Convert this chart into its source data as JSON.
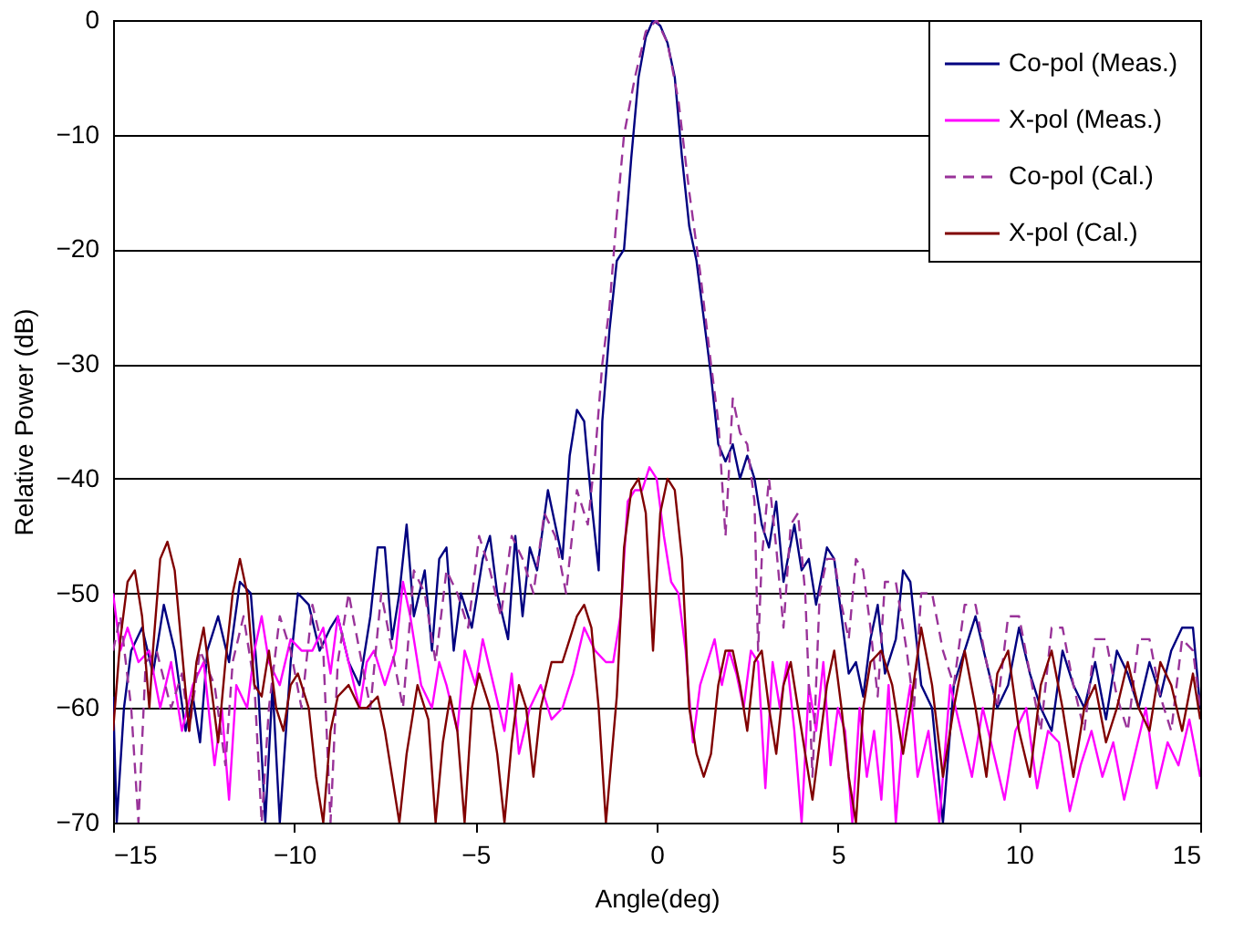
{
  "chart_data": {
    "type": "line",
    "xlabel": "Angle(deg)",
    "ylabel": "Relative Power (dB)",
    "xlim": [
      -15,
      15
    ],
    "xticks": [
      -15,
      -10,
      -5,
      0,
      5,
      10,
      15
    ],
    "ylim": [
      -70,
      0
    ],
    "yticks": [
      -70,
      -60,
      -50,
      -40,
      -30,
      -20,
      -10,
      0
    ],
    "grid": "y",
    "legend": "top right",
    "series": [
      {
        "name": "Co-pol  (Meas.)",
        "color": "#000080",
        "line_style": "solid",
        "x": [
          -15,
          -14.9,
          -14.7,
          -14.5,
          -14.2,
          -13.9,
          -13.6,
          -13.3,
          -13.0,
          -12.8,
          -12.6,
          -12.4,
          -12.1,
          -11.8,
          -11.5,
          -11.2,
          -11.0,
          -10.8,
          -10.6,
          -10.4,
          -10.1,
          -9.9,
          -9.6,
          -9.3,
          -9.0,
          -8.8,
          -8.5,
          -8.2,
          -7.9,
          -7.7,
          -7.5,
          -7.3,
          -7.1,
          -6.9,
          -6.7,
          -6.4,
          -6.2,
          -6.0,
          -5.8,
          -5.6,
          -5.4,
          -5.1,
          -4.8,
          -4.6,
          -4.4,
          -4.1,
          -3.9,
          -3.7,
          -3.5,
          -3.3,
          -3.0,
          -2.8,
          -2.6,
          -2.4,
          -2.2,
          -2.0,
          -1.8,
          -1.6,
          -1.5,
          -1.3,
          -1.1,
          -0.9,
          -0.7,
          -0.5,
          -0.3,
          -0.1,
          0.1,
          0.3,
          0.5,
          0.7,
          0.9,
          1.1,
          1.3,
          1.5,
          1.7,
          1.9,
          2.1,
          2.3,
          2.5,
          2.7,
          2.9,
          3.1,
          3.3,
          3.5,
          3.8,
          4.0,
          4.2,
          4.4,
          4.7,
          4.9,
          5.1,
          5.3,
          5.5,
          5.7,
          5.9,
          6.1,
          6.3,
          6.6,
          6.8,
          7.0,
          7.3,
          7.6,
          7.9,
          8.2,
          8.5,
          8.8,
          9.1,
          9.4,
          9.7,
          10.0,
          10.3,
          10.6,
          10.9,
          11.2,
          11.5,
          11.8,
          12.1,
          12.4,
          12.7,
          13.0,
          13.3,
          13.6,
          13.9,
          14.2,
          14.5,
          14.8,
          15
        ],
        "values": [
          -59,
          -70,
          -60,
          -55,
          -53,
          -57,
          -51,
          -55,
          -62,
          -59,
          -63,
          -55,
          -52,
          -56,
          -49,
          -50,
          -58,
          -70,
          -58,
          -70,
          -56,
          -50,
          -51,
          -55,
          -53,
          -52,
          -56,
          -58,
          -52,
          -46,
          -46,
          -54,
          -50,
          -44,
          -52,
          -48,
          -55,
          -47,
          -46,
          -55,
          -50,
          -53,
          -47,
          -45,
          -50,
          -54,
          -45,
          -52,
          -46,
          -48,
          -41,
          -44,
          -47,
          -38,
          -34,
          -35,
          -42,
          -48,
          -35,
          -27,
          -21,
          -20,
          -12,
          -5,
          -1.5,
          0,
          -0.5,
          -2,
          -5,
          -12,
          -18,
          -21,
          -26,
          -31,
          -37,
          -38.5,
          -37,
          -40,
          -38,
          -40,
          -44,
          -46,
          -42,
          -49,
          -44,
          -48,
          -47,
          -51,
          -46,
          -47,
          -52,
          -57,
          -56,
          -59,
          -54,
          -51,
          -57,
          -54,
          -48,
          -49,
          -58,
          -60,
          -70,
          -58,
          -55,
          -52,
          -56,
          -60,
          -58,
          -53,
          -57,
          -60,
          -62,
          -55,
          -58,
          -60,
          -56,
          -61,
          -55,
          -57,
          -60,
          -56,
          -59,
          -55,
          -53,
          -53,
          -60
        ]
      },
      {
        "name": "X-pol (Meas.)",
        "color": "#ff00ff",
        "line_style": "solid",
        "x": [
          -15,
          -14.8,
          -14.6,
          -14.3,
          -14.0,
          -13.7,
          -13.4,
          -13.1,
          -12.8,
          -12.5,
          -12.2,
          -12.0,
          -11.8,
          -11.6,
          -11.3,
          -11.1,
          -10.9,
          -10.7,
          -10.4,
          -10.1,
          -9.8,
          -9.5,
          -9.2,
          -9.0,
          -8.8,
          -8.5,
          -8.2,
          -8.0,
          -7.8,
          -7.5,
          -7.2,
          -7.0,
          -6.8,
          -6.5,
          -6.2,
          -6.0,
          -5.8,
          -5.5,
          -5.3,
          -5.0,
          -4.8,
          -4.5,
          -4.2,
          -4.0,
          -3.8,
          -3.5,
          -3.2,
          -2.9,
          -2.6,
          -2.3,
          -2.0,
          -1.7,
          -1.4,
          -1.2,
          -1.0,
          -0.8,
          -0.6,
          -0.4,
          -0.2,
          0,
          0.2,
          0.4,
          0.6,
          0.8,
          1.0,
          1.2,
          1.4,
          1.6,
          1.8,
          2.0,
          2.2,
          2.4,
          2.6,
          2.8,
          3.0,
          3.2,
          3.4,
          3.6,
          3.8,
          4.0,
          4.2,
          4.4,
          4.6,
          4.8,
          5.0,
          5.2,
          5.4,
          5.6,
          5.8,
          6.0,
          6.2,
          6.4,
          6.6,
          6.8,
          7.0,
          7.2,
          7.5,
          7.8,
          8.1,
          8.4,
          8.7,
          9.0,
          9.3,
          9.6,
          9.9,
          10.2,
          10.5,
          10.8,
          11.1,
          11.4,
          11.7,
          12.0,
          12.3,
          12.6,
          12.9,
          13.2,
          13.5,
          13.8,
          14.1,
          14.4,
          14.7,
          15
        ],
        "values": [
          -50,
          -55,
          -53,
          -56,
          -55,
          -60,
          -56,
          -62,
          -58,
          -56,
          -65,
          -60,
          -68,
          -58,
          -60,
          -55,
          -52,
          -56,
          -58,
          -54,
          -55,
          -55,
          -53,
          -57,
          -52,
          -56,
          -60,
          -56,
          -55,
          -58,
          -55,
          -49,
          -52,
          -58,
          -60,
          -56,
          -58,
          -62,
          -55,
          -58,
          -54,
          -58,
          -62,
          -57,
          -64,
          -60,
          -58,
          -61,
          -60,
          -57,
          -53,
          -55,
          -56,
          -56,
          -52,
          -42,
          -41,
          -41,
          -39,
          -40,
          -45,
          -49,
          -50,
          -55,
          -63,
          -58,
          -56,
          -54,
          -58,
          -55,
          -57,
          -60,
          -55,
          -56,
          -67,
          -56,
          -60,
          -56,
          -62,
          -70,
          -58,
          -62,
          -56,
          -65,
          -60,
          -62,
          -70,
          -60,
          -66,
          -62,
          -68,
          -58,
          -70,
          -62,
          -58,
          -66,
          -62,
          -70,
          -58,
          -62,
          -66,
          -60,
          -64,
          -68,
          -62,
          -60,
          -67,
          -62,
          -63,
          -69,
          -65,
          -62,
          -66,
          -63,
          -68,
          -64,
          -60,
          -67,
          -63,
          -65,
          -61,
          -66
        ]
      },
      {
        "name": "Co-pol (Cal.)",
        "color": "#993399",
        "line_style": "dashed",
        "x": [
          -15,
          -14.8,
          -14.5,
          -14.3,
          -14.1,
          -13.8,
          -13.4,
          -13.1,
          -12.9,
          -12.6,
          -12.2,
          -11.9,
          -11.7,
          -11.4,
          -11.1,
          -10.9,
          -10.7,
          -10.4,
          -10.1,
          -9.8,
          -9.5,
          -9.2,
          -9.0,
          -8.8,
          -8.5,
          -8.2,
          -7.9,
          -7.6,
          -7.3,
          -7.0,
          -6.7,
          -6.4,
          -6.1,
          -5.8,
          -5.5,
          -5.2,
          -4.9,
          -4.6,
          -4.3,
          -4.0,
          -3.7,
          -3.4,
          -3.1,
          -2.8,
          -2.5,
          -2.2,
          -1.9,
          -1.7,
          -1.5,
          -1.3,
          -1.1,
          -0.9,
          -0.6,
          -0.3,
          0,
          0.3,
          0.6,
          0.9,
          1.2,
          1.5,
          1.7,
          1.9,
          2.1,
          2.3,
          2.5,
          2.7,
          2.8,
          2.9,
          3.1,
          3.3,
          3.5,
          3.7,
          3.9,
          4.1,
          4.3,
          4.5,
          4.7,
          4.9,
          5.1,
          5.3,
          5.5,
          5.7,
          5.9,
          6.1,
          6.3,
          6.6,
          6.9,
          7.1,
          7.3,
          7.6,
          7.9,
          8.2,
          8.5,
          8.8,
          9.1,
          9.4,
          9.7,
          10.0,
          10.3,
          10.6,
          10.9,
          11.2,
          11.5,
          11.8,
          12.1,
          12.4,
          12.7,
          13.0,
          13.3,
          13.6,
          13.9,
          14.2,
          14.5,
          14.8,
          15
        ],
        "values": [
          -55,
          -52,
          -60,
          -70,
          -56,
          -55,
          -60,
          -57,
          -62,
          -55,
          -58,
          -65,
          -56,
          -52,
          -58,
          -70,
          -60,
          -52,
          -55,
          -60,
          -51,
          -55,
          -70,
          -56,
          -50,
          -55,
          -60,
          -50,
          -55,
          -60,
          -48,
          -50,
          -56,
          -48,
          -50,
          -53,
          -45,
          -48,
          -52,
          -45,
          -47,
          -50,
          -43,
          -45,
          -50,
          -41,
          -44,
          -38,
          -30,
          -25,
          -17,
          -10,
          -5,
          -1,
          0,
          -2,
          -7,
          -15,
          -22,
          -30,
          -35,
          -45,
          -33,
          -36,
          -37,
          -42,
          -55,
          -47,
          -40,
          -46,
          -53,
          -44,
          -43,
          -50,
          -66,
          -50,
          -47,
          -47,
          -51,
          -54,
          -47,
          -48,
          -53,
          -59,
          -49,
          -49,
          -55,
          -60,
          -50,
          -50,
          -55,
          -58,
          -51,
          -51,
          -56,
          -60,
          -52,
          -52,
          -57,
          -62,
          -53,
          -53,
          -58,
          -62,
          -54,
          -54,
          -59,
          -62,
          -54,
          -54,
          -59,
          -62,
          -54,
          -55,
          -60
        ]
      },
      {
        "name": "X-pol (Cal.)",
        "color": "#800000",
        "line_style": "solid",
        "x": [
          -15,
          -14.8,
          -14.6,
          -14.4,
          -14.2,
          -14.0,
          -13.9,
          -13.7,
          -13.5,
          -13.3,
          -13.1,
          -12.9,
          -12.7,
          -12.5,
          -12.3,
          -12.1,
          -11.9,
          -11.7,
          -11.5,
          -11.3,
          -11.1,
          -10.9,
          -10.7,
          -10.5,
          -10.3,
          -10.1,
          -9.9,
          -9.6,
          -9.4,
          -9.2,
          -9.0,
          -8.8,
          -8.5,
          -8.2,
          -8.0,
          -7.7,
          -7.5,
          -7.3,
          -7.1,
          -6.9,
          -6.6,
          -6.3,
          -6.1,
          -5.9,
          -5.7,
          -5.5,
          -5.3,
          -5.1,
          -4.9,
          -4.6,
          -4.4,
          -4.2,
          -4.0,
          -3.8,
          -3.6,
          -3.4,
          -3.2,
          -2.9,
          -2.6,
          -2.4,
          -2.2,
          -2.0,
          -1.8,
          -1.6,
          -1.4,
          -1.1,
          -0.9,
          -0.7,
          -0.5,
          -0.3,
          -0.1,
          0.1,
          0.3,
          0.5,
          0.7,
          0.9,
          1.1,
          1.3,
          1.5,
          1.7,
          1.9,
          2.1,
          2.3,
          2.5,
          2.7,
          2.9,
          3.1,
          3.3,
          3.5,
          3.7,
          3.9,
          4.1,
          4.3,
          4.5,
          4.7,
          4.9,
          5.1,
          5.3,
          5.5,
          5.7,
          5.9,
          6.2,
          6.5,
          6.8,
          7.0,
          7.3,
          7.6,
          7.9,
          8.2,
          8.5,
          8.8,
          9.1,
          9.4,
          9.7,
          10.0,
          10.3,
          10.6,
          10.9,
          11.2,
          11.5,
          11.8,
          12.1,
          12.4,
          12.7,
          13.0,
          13.3,
          13.6,
          13.9,
          14.2,
          14.5,
          14.8,
          15
        ],
        "values": [
          -62,
          -54,
          -49,
          -48,
          -52,
          -60,
          -55,
          -47,
          -45.5,
          -48,
          -55,
          -62,
          -56,
          -53,
          -58,
          -63,
          -56,
          -50,
          -47,
          -50,
          -58,
          -59,
          -55,
          -60,
          -62,
          -58,
          -57,
          -60,
          -66,
          -70,
          -62,
          -59,
          -58,
          -60,
          -60,
          -59,
          -62,
          -66,
          -70,
          -64,
          -58,
          -61,
          -70,
          -63,
          -59,
          -62,
          -70,
          -60,
          -57,
          -60,
          -64,
          -70,
          -63,
          -58,
          -60,
          -66,
          -60,
          -56,
          -56,
          -54,
          -52,
          -51,
          -53,
          -60,
          -70,
          -59,
          -46,
          -41,
          -40,
          -43,
          -55,
          -43,
          -40,
          -41,
          -47,
          -60,
          -64,
          -66,
          -64,
          -58,
          -55,
          -55,
          -58,
          -62,
          -56,
          -55,
          -60,
          -64,
          -58,
          -56,
          -60,
          -64,
          -68,
          -63,
          -58,
          -55,
          -60,
          -66,
          -70,
          -60,
          -56,
          -55,
          -58,
          -64,
          -60,
          -53,
          -58,
          -66,
          -60,
          -55,
          -60,
          -66,
          -57,
          -55,
          -62,
          -66,
          -58,
          -55,
          -60,
          -66,
          -60,
          -58,
          -63,
          -60,
          -56,
          -60,
          -62,
          -56,
          -58,
          -62,
          -57,
          -61
        ]
      }
    ]
  }
}
